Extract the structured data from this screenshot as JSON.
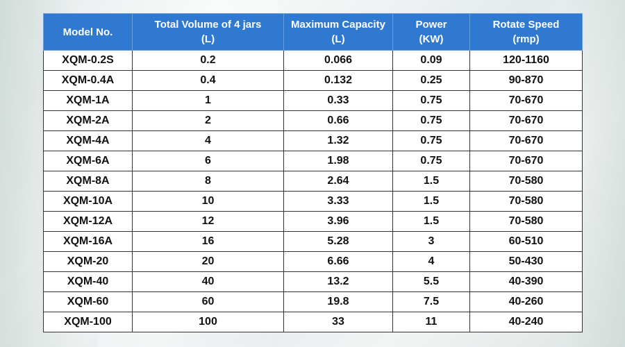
{
  "table": {
    "headers": [
      [
        "Model No."
      ],
      [
        "Total Volume of 4 jars",
        "(L)"
      ],
      [
        "Maximum Capacity",
        "(L)"
      ],
      [
        "Power",
        "(KW)"
      ],
      [
        "Rotate Speed",
        "(rmp)"
      ]
    ],
    "rows": [
      [
        "XQM-0.2S",
        "0.2",
        "0.066",
        "0.09",
        "120-1160"
      ],
      [
        "XQM-0.4A",
        "0.4",
        "0.132",
        "0.25",
        "90-870"
      ],
      [
        "XQM-1A",
        "1",
        "0.33",
        "0.75",
        "70-670"
      ],
      [
        "XQM-2A",
        "2",
        "0.66",
        "0.75",
        "70-670"
      ],
      [
        "XQM-4A",
        "4",
        "1.32",
        "0.75",
        "70-670"
      ],
      [
        "XQM-6A",
        "6",
        "1.98",
        "0.75",
        "70-670"
      ],
      [
        "XQM-8A",
        "8",
        "2.64",
        "1.5",
        "70-580"
      ],
      [
        "XQM-10A",
        "10",
        "3.33",
        "1.5",
        "70-580"
      ],
      [
        "XQM-12A",
        "12",
        "3.96",
        "1.5",
        "70-580"
      ],
      [
        "XQM-16A",
        "16",
        "5.28",
        "3",
        "60-510"
      ],
      [
        "XQM-20",
        "20",
        "6.66",
        "4",
        "50-430"
      ],
      [
        "XQM-40",
        "40",
        "13.2",
        "5.5",
        "40-390"
      ],
      [
        "XQM-60",
        "60",
        "19.8",
        "7.5",
        "40-260"
      ],
      [
        "XQM-100",
        "100",
        "33",
        "11",
        "40-240"
      ]
    ]
  },
  "colors": {
    "header_bg": "#2f7ad0",
    "header_text": "#ffffff",
    "cell_text": "#111111",
    "grid": "#333333"
  }
}
